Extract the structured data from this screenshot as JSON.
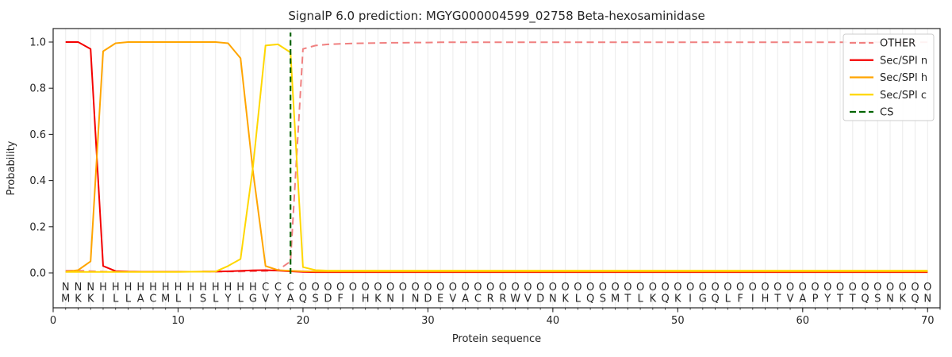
{
  "chart_data": {
    "type": "line",
    "title": "SignalP 6.0 prediction: MGYG000004599_02758 Beta-hexosaminidase",
    "xlabel": "Protein sequence",
    "ylabel": "Probability",
    "xlim": [
      0,
      71
    ],
    "ylim": [
      -0.15,
      1.06
    ],
    "x_start": 1,
    "x_ticks": [
      0,
      10,
      20,
      30,
      40,
      50,
      60,
      70
    ],
    "x_tick_labels": [
      "0",
      "10",
      "20",
      "30",
      "40",
      "50",
      "60",
      "70"
    ],
    "y_ticks": [
      0.0,
      0.2,
      0.4,
      0.6,
      0.8,
      1.0
    ],
    "y_tick_labels": [
      "0.0",
      "0.2",
      "0.4",
      "0.6",
      "0.8",
      "1.0"
    ],
    "grid": "vertical minor gridlines at each residue position",
    "legend_position": "upper right",
    "background": "#ffffff",
    "grid_color": "#ededed",
    "axis_color": "#262626",
    "sequence_color": "#262626",
    "series": [
      {
        "name": "OTHER",
        "color": "#f08080",
        "style": "dashed",
        "values": [
          0.01,
          0.01,
          0.008,
          0.006,
          0.005,
          0.005,
          0.005,
          0.005,
          0.005,
          0.005,
          0.005,
          0.005,
          0.005,
          0.006,
          0.006,
          0.007,
          0.008,
          0.012,
          0.05,
          0.97,
          0.985,
          0.99,
          0.992,
          0.994,
          0.995,
          0.996,
          0.997,
          0.997,
          0.998,
          0.998,
          0.999,
          0.999,
          0.999,
          0.999,
          0.999,
          0.999,
          0.999,
          0.999,
          0.999,
          0.999,
          0.999,
          0.999,
          0.999,
          0.999,
          0.999,
          0.999,
          0.999,
          0.999,
          0.999,
          0.999,
          0.999,
          0.999,
          0.999,
          0.999,
          0.999,
          0.999,
          0.999,
          0.999,
          0.999,
          0.999,
          0.999,
          0.999,
          0.999,
          0.999,
          0.999,
          0.999,
          0.999,
          0.999,
          0.999,
          0.999
        ]
      },
      {
        "name": "Sec/SPI n",
        "color": "#f40000",
        "style": "solid",
        "values": [
          1.0,
          1.0,
          0.97,
          0.03,
          0.008,
          0.006,
          0.005,
          0.005,
          0.005,
          0.005,
          0.005,
          0.006,
          0.006,
          0.007,
          0.009,
          0.011,
          0.012,
          0.01,
          0.007,
          0.004,
          0.003,
          0.003,
          0.003,
          0.003,
          0.003,
          0.003,
          0.003,
          0.003,
          0.003,
          0.003,
          0.003,
          0.003,
          0.003,
          0.003,
          0.003,
          0.003,
          0.003,
          0.003,
          0.003,
          0.003,
          0.003,
          0.003,
          0.003,
          0.003,
          0.003,
          0.003,
          0.003,
          0.003,
          0.003,
          0.003,
          0.003,
          0.003,
          0.003,
          0.003,
          0.003,
          0.003,
          0.003,
          0.003,
          0.003,
          0.003,
          0.003,
          0.003,
          0.003,
          0.003,
          0.003,
          0.003,
          0.003,
          0.003,
          0.003,
          0.003
        ]
      },
      {
        "name": "Sec/SPI h",
        "color": "#ffa500",
        "style": "solid",
        "values": [
          0.005,
          0.012,
          0.05,
          0.96,
          0.995,
          1.0,
          1.0,
          1.0,
          1.0,
          1.0,
          1.0,
          1.0,
          1.0,
          0.995,
          0.93,
          0.44,
          0.03,
          0.012,
          0.009,
          0.007,
          0.006,
          0.006,
          0.006,
          0.006,
          0.006,
          0.006,
          0.006,
          0.006,
          0.006,
          0.006,
          0.006,
          0.006,
          0.006,
          0.006,
          0.006,
          0.006,
          0.006,
          0.006,
          0.006,
          0.006,
          0.006,
          0.006,
          0.006,
          0.006,
          0.006,
          0.006,
          0.006,
          0.006,
          0.006,
          0.006,
          0.006,
          0.006,
          0.006,
          0.006,
          0.006,
          0.006,
          0.006,
          0.006,
          0.006,
          0.006,
          0.006,
          0.006,
          0.006,
          0.006,
          0.006,
          0.006,
          0.006,
          0.006,
          0.006,
          0.006
        ]
      },
      {
        "name": "Sec/SPI c",
        "color": "#ffd700",
        "style": "solid",
        "values": [
          0.004,
          0.004,
          0.004,
          0.004,
          0.004,
          0.004,
          0.004,
          0.004,
          0.004,
          0.004,
          0.005,
          0.005,
          0.006,
          0.03,
          0.06,
          0.46,
          0.985,
          0.99,
          0.955,
          0.025,
          0.012,
          0.01,
          0.01,
          0.01,
          0.01,
          0.01,
          0.01,
          0.01,
          0.01,
          0.01,
          0.01,
          0.01,
          0.01,
          0.01,
          0.01,
          0.01,
          0.01,
          0.01,
          0.01,
          0.01,
          0.01,
          0.01,
          0.01,
          0.01,
          0.01,
          0.01,
          0.01,
          0.01,
          0.01,
          0.01,
          0.01,
          0.01,
          0.01,
          0.01,
          0.01,
          0.01,
          0.01,
          0.01,
          0.01,
          0.01,
          0.01,
          0.01,
          0.01,
          0.01,
          0.01,
          0.01,
          0.01,
          0.01,
          0.01,
          0.01
        ]
      }
    ],
    "cs_marker": {
      "name": "CS",
      "color": "#006400",
      "style": "dashed",
      "position": 19
    },
    "legend_entries": [
      "OTHER",
      "Sec/SPI n",
      "Sec/SPI h",
      "Sec/SPI c",
      "CS"
    ],
    "sequence": "MKKILLACMLISLYLGVYAQSDFIHKNINDEVACRRWVDNKLQSMTLKQKIGQLFIHTVAPYTTQSNKQN",
    "region_labels": "NNNHHHHHHHHHHHHHCCCOOOOOOOOOOOOOOOOOOOOOOOOOOOOOOOOOOOOOOOOOOOOOOOOOO",
    "region_label_colors": {
      "N": "#f40000",
      "H": "#ffa500",
      "C": "#ffd700",
      "O": "#8c8c8c"
    }
  }
}
